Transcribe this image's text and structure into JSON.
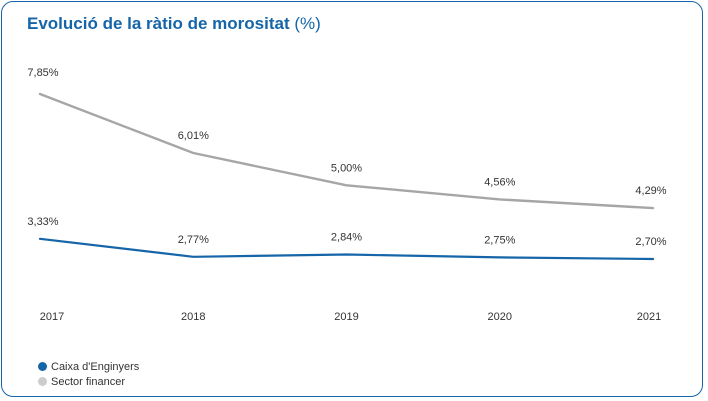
{
  "title": {
    "main": "Evolució de la ràtio de morositat",
    "unit": "(%)"
  },
  "colors": {
    "accent": "#1565a8",
    "series_caixa": "#1565a8",
    "series_sector": "#a6a6a6"
  },
  "chart_data": {
    "type": "line",
    "title": "Evolució de la ràtio de morositat (%)",
    "x": [
      "2017",
      "2018",
      "2019",
      "2020",
      "2021"
    ],
    "series": [
      {
        "name": "Caixa d'Enginyers",
        "color": "#1565a8",
        "values": [
          3.33,
          2.77,
          2.84,
          2.75,
          2.7
        ],
        "labels": [
          "3,33%",
          "2,77%",
          "2,84%",
          "2,75%",
          "2,70%"
        ]
      },
      {
        "name": "Sector financer",
        "color": "#a6a6a6",
        "values": [
          7.85,
          6.01,
          5.0,
          4.56,
          4.29
        ],
        "labels": [
          "7,85%",
          "6,01%",
          "5,00%",
          "4,56%",
          "4,29%"
        ]
      }
    ],
    "grid": false,
    "legend_position": "bottom-left"
  },
  "legend": [
    {
      "label": "Caixa d'Enginyers",
      "color": "#1565a8"
    },
    {
      "label": "Sector financer",
      "color": "#cccccc"
    }
  ]
}
